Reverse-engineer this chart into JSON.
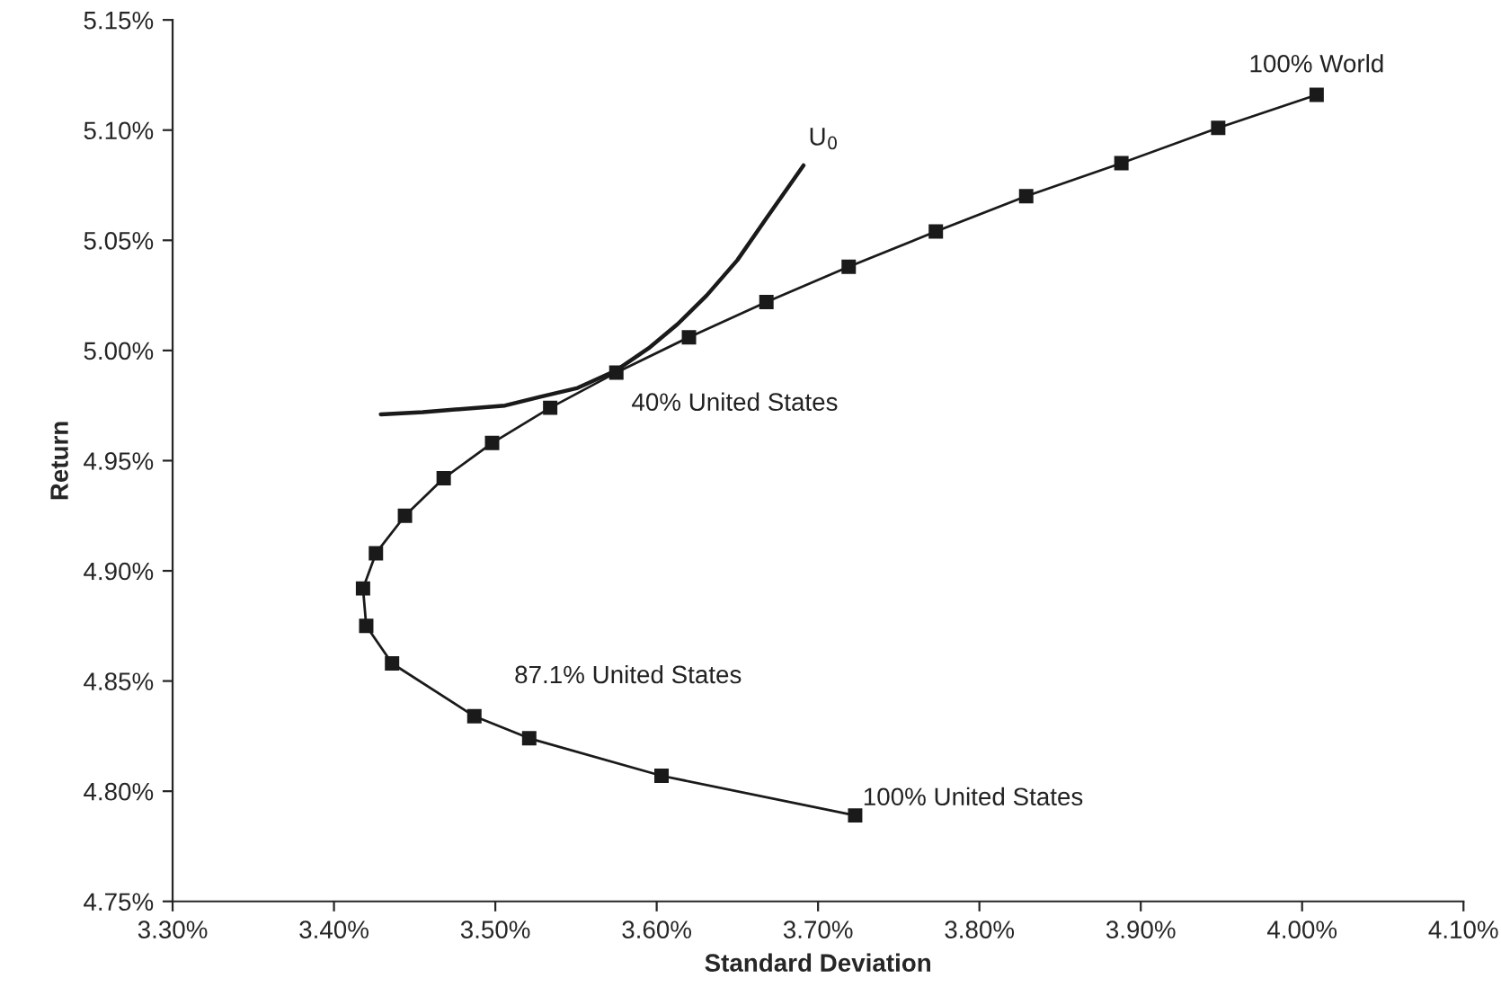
{
  "chart_data": {
    "type": "line",
    "xlabel": "Standard Deviation",
    "ylabel": "Return",
    "series": [
      {
        "color": "#1a1a1a",
        "marker": "square",
        "x": [
          3.723,
          3.603,
          3.521,
          3.487,
          3.436,
          3.42,
          3.418,
          3.426,
          3.444,
          3.468,
          3.498,
          3.534,
          3.575,
          3.62,
          3.668,
          3.719,
          3.773,
          3.829,
          3.888,
          3.948,
          4.009
        ],
        "values": [
          4.789,
          4.807,
          4.824,
          4.834,
          4.858,
          4.875,
          4.892,
          4.908,
          4.925,
          4.942,
          4.958,
          4.974,
          4.99,
          5.006,
          5.022,
          5.038,
          5.054,
          5.07,
          5.085,
          5.101,
          5.116
        ]
      },
      {
        "color": "#1a1a1a",
        "marker": "none",
        "x": [
          3.429,
          3.455,
          3.506,
          3.528,
          3.551,
          3.575,
          3.595,
          3.613,
          3.631,
          3.65,
          3.668,
          3.691
        ],
        "values": [
          4.971,
          4.972,
          4.975,
          4.979,
          4.983,
          4.991,
          5.001,
          5.012,
          5.025,
          5.041,
          5.06,
          5.084
        ]
      }
    ],
    "annotations": [
      {
        "text": "U$_{0}$",
        "x": 3.691,
        "y": 5.084
      },
      {
        "text": "100% World",
        "x": 4.009,
        "y": 5.116
      },
      {
        "text": "40% United States",
        "x": 3.575,
        "y": 4.99
      },
      {
        "text": "87.1% United States",
        "x": 3.521,
        "y": 4.824
      },
      {
        "text": "100% United States",
        "x": 3.723,
        "y": 4.789
      }
    ],
    "xlim": [
      3.3,
      4.1
    ],
    "xticks": [
      {
        "value": 3.3,
        "label": "3.30%"
      },
      {
        "value": 3.4,
        "label": "3.40%"
      },
      {
        "value": 3.5,
        "label": "3.50%"
      },
      {
        "value": 3.6,
        "label": "3.60%"
      },
      {
        "value": 3.7,
        "label": "3.70%"
      },
      {
        "value": 3.8,
        "label": "3.80%"
      },
      {
        "value": 3.9,
        "label": "3.90%"
      },
      {
        "value": 4.0,
        "label": "4.00%"
      },
      {
        "value": 4.1,
        "label": "4.10%"
      }
    ],
    "ylim": [
      4.75,
      5.15
    ],
    "yticks": [
      {
        "value": 4.75,
        "label": "4.75%"
      },
      {
        "value": 4.8,
        "label": "4.80%"
      },
      {
        "value": 4.85,
        "label": "4.85%"
      },
      {
        "value": 4.9,
        "label": "4.90%"
      },
      {
        "value": 4.95,
        "label": "4.95%"
      },
      {
        "value": 5.0,
        "label": "5.00%"
      },
      {
        "value": 5.05,
        "label": "5.05%"
      },
      {
        "value": 5.1,
        "label": "5.10%"
      },
      {
        "value": 5.15,
        "label": "5.15%"
      }
    ],
    "grid": false,
    "legend": false
  }
}
